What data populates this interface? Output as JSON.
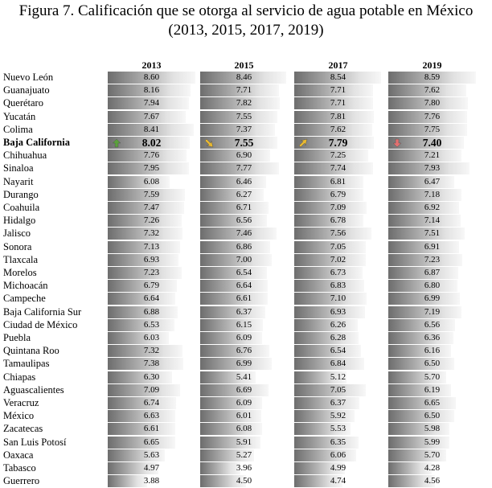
{
  "title": {
    "line1": "Figura 7. Calificación que se otorga al servicio de agua potable en México",
    "line2": "(2013, 2015, 2017, 2019)"
  },
  "chart_data": {
    "type": "table",
    "columns": [
      "2013",
      "2015",
      "2017",
      "2019"
    ],
    "highlight_row": "Baja California",
    "highlight_arrows": [
      {
        "year": "2013",
        "direction": "up",
        "color": "#5aa03c",
        "icon": "arrow-up-icon"
      },
      {
        "year": "2015",
        "direction": "down-right",
        "color": "#e8b830",
        "icon": "arrow-down-right-icon"
      },
      {
        "year": "2017",
        "direction": "up-right",
        "color": "#e8b830",
        "icon": "arrow-up-right-icon"
      },
      {
        "year": "2019",
        "direction": "down",
        "color": "#e07070",
        "icon": "arrow-down-icon"
      }
    ],
    "rows": [
      {
        "state": "Nuevo León",
        "values": [
          "8.60",
          "8.46",
          "8.54",
          "8.59"
        ]
      },
      {
        "state": "Guanajuato",
        "values": [
          "8.16",
          "7.71",
          "7.71",
          "7.62"
        ]
      },
      {
        "state": "Querétaro",
        "values": [
          "7.94",
          "7.82",
          "7.71",
          "7.80"
        ]
      },
      {
        "state": "Yucatán",
        "values": [
          "7.67",
          "7.55",
          "7.81",
          "7.76"
        ]
      },
      {
        "state": "Colima",
        "values": [
          "8.41",
          "7.37",
          "7.62",
          "7.75"
        ]
      },
      {
        "state": "Baja California",
        "values": [
          "8.02",
          "7.55",
          "7.79",
          "7.40"
        ]
      },
      {
        "state": "Chihuahua",
        "values": [
          "7.76",
          "6.90",
          "7.25",
          "7.21"
        ]
      },
      {
        "state": "Sinaloa",
        "values": [
          "7.95",
          "7.77",
          "7.74",
          "7.93"
        ]
      },
      {
        "state": "Nayarit",
        "values": [
          "6.08",
          "6.46",
          "6.81",
          "6.47"
        ]
      },
      {
        "state": "Durango",
        "values": [
          "7.59",
          "6.27",
          "6.79",
          "7.18"
        ]
      },
      {
        "state": "Coahuila",
        "values": [
          "7.47",
          "6.71",
          "7.09",
          "6.92"
        ]
      },
      {
        "state": "Hidalgo",
        "values": [
          "7.26",
          "6.56",
          "6.78",
          "7.14"
        ]
      },
      {
        "state": "Jalisco",
        "values": [
          "7.32",
          "7.46",
          "7.56",
          "7.51"
        ]
      },
      {
        "state": "Sonora",
        "values": [
          "7.13",
          "6.86",
          "7.05",
          "6.91"
        ]
      },
      {
        "state": "Tlaxcala",
        "values": [
          "6.93",
          "7.00",
          "7.02",
          "7.23"
        ]
      },
      {
        "state": "Morelos",
        "values": [
          "7.23",
          "6.54",
          "6.73",
          "6.87"
        ]
      },
      {
        "state": "Michoacán",
        "values": [
          "6.79",
          "6.64",
          "6.83",
          "6.80"
        ]
      },
      {
        "state": "Campeche",
        "values": [
          "6.64",
          "6.61",
          "7.10",
          "6.99"
        ]
      },
      {
        "state": "Baja California Sur",
        "values": [
          "6.88",
          "6.37",
          "6.93",
          "7.19"
        ]
      },
      {
        "state": "Ciudad de México",
        "values": [
          "6.53",
          "6.15",
          "6.26",
          "6.56"
        ]
      },
      {
        "state": "Puebla",
        "values": [
          "6.03",
          "6.09",
          "6.28",
          "6.36"
        ]
      },
      {
        "state": "Quintana Roo",
        "values": [
          "7.32",
          "6.76",
          "6.54",
          "6.16"
        ]
      },
      {
        "state": "Tamaulipas",
        "values": [
          "7.38",
          "6.99",
          "6.84",
          "6.50"
        ]
      },
      {
        "state": "Chiapas",
        "values": [
          "6.30",
          "5.41",
          "5.12",
          "5.70"
        ]
      },
      {
        "state": "Aguascalientes",
        "values": [
          "7.09",
          "6.69",
          "7.05",
          "6.19"
        ]
      },
      {
        "state": "Veracruz",
        "values": [
          "6.74",
          "6.09",
          "6.37",
          "6.65"
        ]
      },
      {
        "state": "México",
        "values": [
          "6.63",
          "6.01",
          "5.92",
          "6.50"
        ]
      },
      {
        "state": "Zacatecas",
        "values": [
          "6.61",
          "6.08",
          "5.53",
          "5.98"
        ]
      },
      {
        "state": "San Luis Potosí",
        "values": [
          "6.65",
          "5.91",
          "6.35",
          "5.99"
        ]
      },
      {
        "state": "Oaxaca",
        "values": [
          "5.63",
          "5.27",
          "6.06",
          "5.70"
        ]
      },
      {
        "state": "Tabasco",
        "values": [
          "4.97",
          "3.96",
          "4.99",
          "4.28"
        ]
      },
      {
        "state": "Guerrero",
        "values": [
          "3.88",
          "4.50",
          "4.74",
          "4.56"
        ]
      }
    ],
    "bar_scale_max": 8.6
  }
}
